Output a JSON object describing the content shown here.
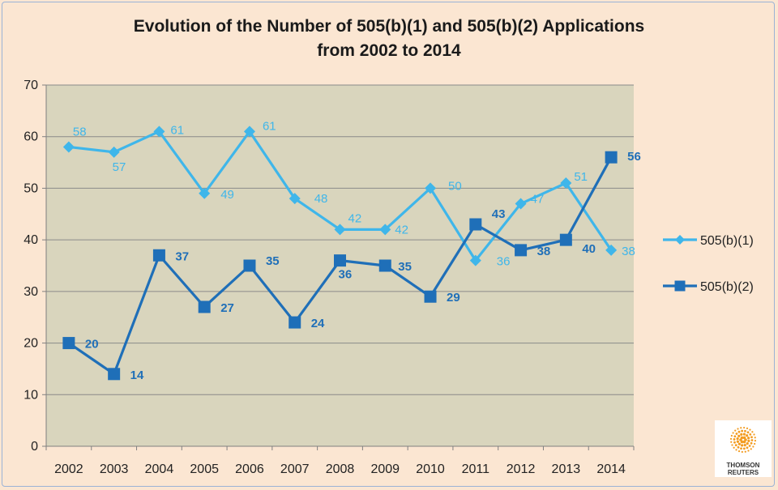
{
  "chart_data": {
    "type": "line",
    "title_line1": "Evolution of the Number of 505(b)(1) and 505(b)(2) Applications",
    "title_line2": "from 2002 to 2014",
    "categories": [
      "2002",
      "2003",
      "2004",
      "2005",
      "2006",
      "2007",
      "2008",
      "2009",
      "2010",
      "2011",
      "2012",
      "2013",
      "2014"
    ],
    "series": [
      {
        "name": "505(b)(1)",
        "color": "#3fb6ea",
        "marker": "diamond",
        "values": [
          58,
          57,
          61,
          49,
          61,
          48,
          42,
          42,
          50,
          36,
          47,
          51,
          38
        ]
      },
      {
        "name": "505(b)(2)",
        "color": "#1f6fb8",
        "marker": "square",
        "values": [
          20,
          14,
          37,
          27,
          35,
          24,
          36,
          35,
          29,
          43,
          38,
          40,
          56
        ]
      }
    ],
    "ylim": [
      0,
      70
    ],
    "yticks": [
      0,
      10,
      20,
      30,
      40,
      50,
      60,
      70
    ],
    "grid": true,
    "legend": "right",
    "plot_background": "#d9d5bd"
  },
  "logo": {
    "brand_line1": "THOMSON",
    "brand_line2": "REUTERS",
    "color": "#f39c21"
  }
}
